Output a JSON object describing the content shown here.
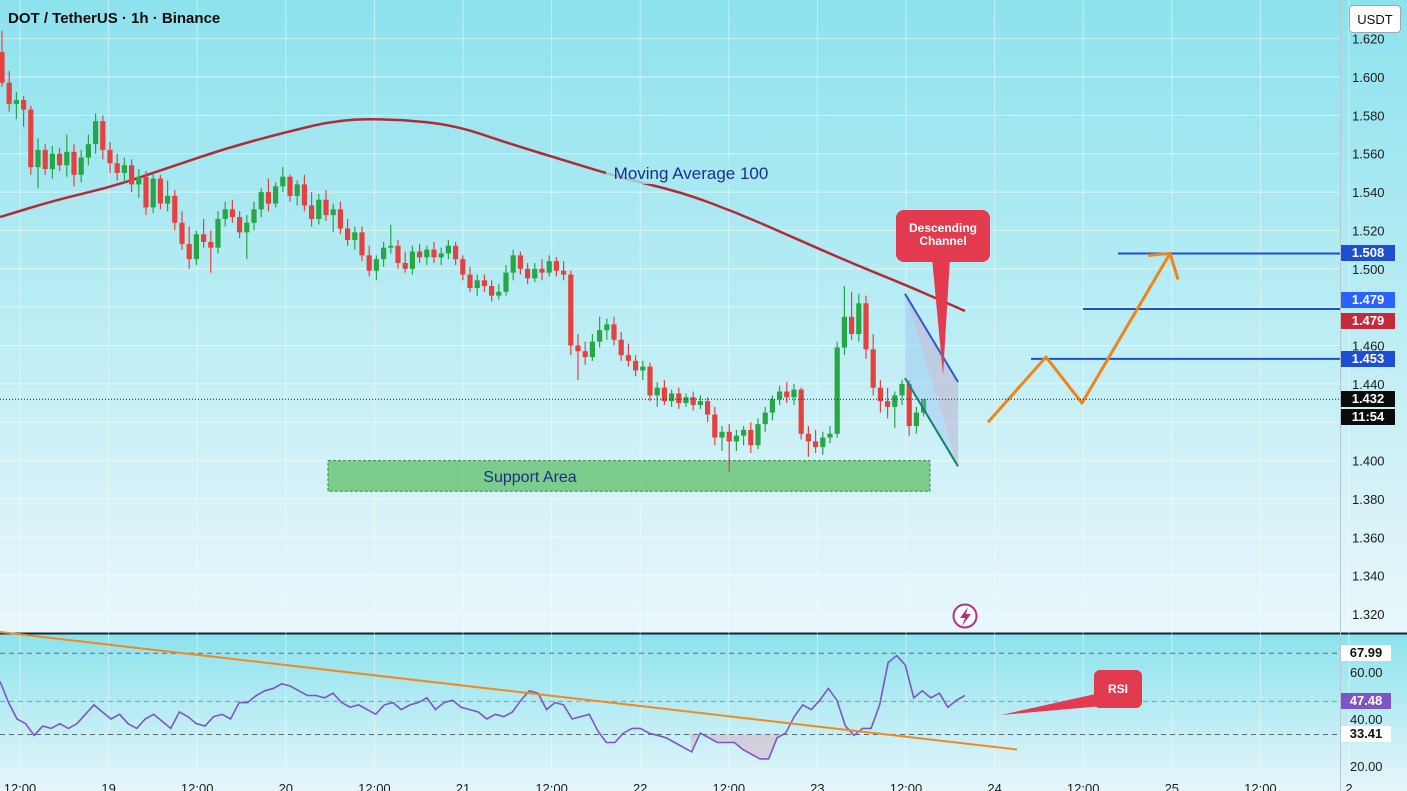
{
  "header": {
    "title": "DOT / TetherUS · 1h · Binance",
    "currency": "USDT"
  },
  "colors": {
    "background_top": "#8fe3ee",
    "background_bottom": "#e8f7fb",
    "candle_up": "#26a645",
    "candle_down": "#e4413f",
    "moving_average": "#b12a37",
    "forecast_arrow": "#ef8418",
    "support_area": "#5fbf6a",
    "channel_fill": "#8bb8f2",
    "rsi_line": "#7e55c6",
    "rsi_trend": "#ef8a1f",
    "level_line": "#1f4fd1",
    "callout_red": "#e23a4f"
  },
  "chart_data": [
    {
      "type": "line",
      "title": "DOT / TetherUS · 1h · Binance",
      "ylabel": "USDT",
      "ylim": [
        1.3,
        1.63
      ],
      "yticks": [
        1.32,
        1.34,
        1.36,
        1.38,
        1.4,
        1.42,
        1.44,
        1.46,
        1.48,
        1.5,
        1.52,
        1.54,
        1.56,
        1.58,
        1.6,
        1.62
      ],
      "ytick_labels": [
        "1.320",
        "1.340",
        "1.360",
        "1.380",
        "1.400",
        "",
        "1.440",
        "1.460",
        "",
        "1.500",
        "1.520",
        "1.540",
        "1.560",
        "1.580",
        "1.600",
        "1.620"
      ],
      "grid": true,
      "candles_ohlc": [
        [
          1.613,
          1.624,
          1.595,
          1.597
        ],
        [
          1.597,
          1.603,
          1.582,
          1.586
        ],
        [
          1.586,
          1.592,
          1.578,
          1.588
        ],
        [
          1.588,
          1.59,
          1.574,
          1.583
        ],
        [
          1.583,
          1.585,
          1.549,
          1.553
        ],
        [
          1.553,
          1.568,
          1.542,
          1.562
        ],
        [
          1.562,
          1.565,
          1.549,
          1.552
        ],
        [
          1.552,
          1.564,
          1.547,
          1.56
        ],
        [
          1.56,
          1.563,
          1.551,
          1.554
        ],
        [
          1.554,
          1.57,
          1.548,
          1.561
        ],
        [
          1.561,
          1.565,
          1.543,
          1.549
        ],
        [
          1.549,
          1.562,
          1.545,
          1.558
        ],
        [
          1.558,
          1.57,
          1.554,
          1.565
        ],
        [
          1.565,
          1.581,
          1.56,
          1.577
        ],
        [
          1.577,
          1.58,
          1.557,
          1.562
        ],
        [
          1.562,
          1.566,
          1.55,
          1.555
        ],
        [
          1.555,
          1.56,
          1.546,
          1.55
        ],
        [
          1.55,
          1.558,
          1.545,
          1.554
        ],
        [
          1.554,
          1.557,
          1.54,
          1.544
        ],
        [
          1.544,
          1.552,
          1.537,
          1.548
        ],
        [
          1.548,
          1.551,
          1.528,
          1.532
        ],
        [
          1.532,
          1.55,
          1.529,
          1.547
        ],
        [
          1.547,
          1.549,
          1.531,
          1.534
        ],
        [
          1.534,
          1.546,
          1.53,
          1.538
        ],
        [
          1.538,
          1.541,
          1.52,
          1.524
        ],
        [
          1.524,
          1.53,
          1.51,
          1.513
        ],
        [
          1.513,
          1.522,
          1.5,
          1.505
        ],
        [
          1.505,
          1.52,
          1.502,
          1.518
        ],
        [
          1.518,
          1.526,
          1.511,
          1.514
        ],
        [
          1.514,
          1.52,
          1.498,
          1.511
        ],
        [
          1.511,
          1.53,
          1.508,
          1.526
        ],
        [
          1.526,
          1.535,
          1.522,
          1.531
        ],
        [
          1.531,
          1.536,
          1.524,
          1.527
        ],
        [
          1.527,
          1.53,
          1.516,
          1.519
        ],
        [
          1.519,
          1.528,
          1.505,
          1.524
        ],
        [
          1.524,
          1.535,
          1.52,
          1.531
        ],
        [
          1.531,
          1.542,
          1.527,
          1.54
        ],
        [
          1.54,
          1.547,
          1.53,
          1.534
        ],
        [
          1.534,
          1.545,
          1.532,
          1.543
        ],
        [
          1.543,
          1.553,
          1.54,
          1.548
        ],
        [
          1.548,
          1.549,
          1.535,
          1.538
        ],
        [
          1.538,
          1.546,
          1.533,
          1.544
        ],
        [
          1.544,
          1.549,
          1.53,
          1.533
        ],
        [
          1.533,
          1.54,
          1.522,
          1.526
        ],
        [
          1.526,
          1.539,
          1.523,
          1.536
        ],
        [
          1.536,
          1.541,
          1.525,
          1.528
        ],
        [
          1.528,
          1.534,
          1.519,
          1.531
        ],
        [
          1.531,
          1.535,
          1.518,
          1.521
        ],
        [
          1.521,
          1.526,
          1.512,
          1.515
        ],
        [
          1.515,
          1.522,
          1.51,
          1.519
        ],
        [
          1.519,
          1.522,
          1.504,
          1.507
        ],
        [
          1.507,
          1.512,
          1.496,
          1.499
        ],
        [
          1.499,
          1.507,
          1.494,
          1.505
        ],
        [
          1.505,
          1.514,
          1.501,
          1.511
        ],
        [
          1.511,
          1.523,
          1.508,
          1.512
        ],
        [
          1.512,
          1.515,
          1.5,
          1.503
        ],
        [
          1.503,
          1.509,
          1.498,
          1.5
        ],
        [
          1.5,
          1.512,
          1.497,
          1.509
        ],
        [
          1.509,
          1.513,
          1.503,
          1.506
        ],
        [
          1.506,
          1.512,
          1.502,
          1.51
        ],
        [
          1.51,
          1.514,
          1.503,
          1.506
        ],
        [
          1.506,
          1.511,
          1.502,
          1.508
        ],
        [
          1.508,
          1.515,
          1.505,
          1.512
        ],
        [
          1.512,
          1.514,
          1.502,
          1.505
        ],
        [
          1.505,
          1.507,
          1.494,
          1.497
        ],
        [
          1.497,
          1.501,
          1.488,
          1.49
        ],
        [
          1.49,
          1.497,
          1.486,
          1.494
        ],
        [
          1.494,
          1.497,
          1.488,
          1.491
        ],
        [
          1.491,
          1.494,
          1.483,
          1.486
        ],
        [
          1.486,
          1.492,
          1.484,
          1.488
        ],
        [
          1.488,
          1.502,
          1.486,
          1.498
        ],
        [
          1.498,
          1.51,
          1.494,
          1.507
        ],
        [
          1.507,
          1.509,
          1.497,
          1.5
        ],
        [
          1.5,
          1.503,
          1.492,
          1.495
        ],
        [
          1.495,
          1.503,
          1.493,
          1.5
        ],
        [
          1.5,
          1.505,
          1.494,
          1.498
        ],
        [
          1.498,
          1.507,
          1.496,
          1.504
        ],
        [
          1.504,
          1.506,
          1.496,
          1.499
        ],
        [
          1.499,
          1.504,
          1.494,
          1.497
        ],
        [
          1.497,
          1.499,
          1.455,
          1.46
        ],
        [
          1.46,
          1.466,
          1.442,
          1.457
        ],
        [
          1.457,
          1.462,
          1.45,
          1.454
        ],
        [
          1.454,
          1.466,
          1.452,
          1.462
        ],
        [
          1.462,
          1.475,
          1.459,
          1.468
        ],
        [
          1.468,
          1.474,
          1.463,
          1.471
        ],
        [
          1.471,
          1.475,
          1.46,
          1.463
        ],
        [
          1.463,
          1.467,
          1.452,
          1.455
        ],
        [
          1.455,
          1.461,
          1.449,
          1.452
        ],
        [
          1.452,
          1.455,
          1.444,
          1.447
        ],
        [
          1.447,
          1.452,
          1.442,
          1.449
        ],
        [
          1.449,
          1.451,
          1.431,
          1.434
        ],
        [
          1.434,
          1.441,
          1.428,
          1.438
        ],
        [
          1.438,
          1.442,
          1.429,
          1.431
        ],
        [
          1.431,
          1.437,
          1.428,
          1.435
        ],
        [
          1.435,
          1.438,
          1.427,
          1.43
        ],
        [
          1.43,
          1.435,
          1.428,
          1.433
        ],
        [
          1.433,
          1.436,
          1.426,
          1.429
        ],
        [
          1.429,
          1.434,
          1.427,
          1.431
        ],
        [
          1.431,
          1.433,
          1.42,
          1.424
        ],
        [
          1.424,
          1.428,
          1.408,
          1.412
        ],
        [
          1.412,
          1.418,
          1.405,
          1.415
        ],
        [
          1.415,
          1.419,
          1.394,
          1.41
        ],
        [
          1.41,
          1.416,
          1.405,
          1.413
        ],
        [
          1.413,
          1.418,
          1.408,
          1.416
        ],
        [
          1.416,
          1.42,
          1.404,
          1.408
        ],
        [
          1.408,
          1.422,
          1.406,
          1.419
        ],
        [
          1.419,
          1.428,
          1.415,
          1.425
        ],
        [
          1.425,
          1.434,
          1.421,
          1.432
        ],
        [
          1.432,
          1.439,
          1.429,
          1.436
        ],
        [
          1.436,
          1.441,
          1.43,
          1.433
        ],
        [
          1.433,
          1.44,
          1.429,
          1.437
        ],
        [
          1.437,
          1.438,
          1.411,
          1.414
        ],
        [
          1.414,
          1.418,
          1.402,
          1.41
        ],
        [
          1.41,
          1.416,
          1.404,
          1.407
        ],
        [
          1.407,
          1.415,
          1.403,
          1.412
        ],
        [
          1.412,
          1.418,
          1.409,
          1.414
        ],
        [
          1.414,
          1.462,
          1.412,
          1.459
        ],
        [
          1.459,
          1.491,
          1.455,
          1.475
        ],
        [
          1.475,
          1.488,
          1.463,
          1.466
        ],
        [
          1.466,
          1.487,
          1.462,
          1.482
        ],
        [
          1.482,
          1.486,
          1.453,
          1.458
        ],
        [
          1.458,
          1.466,
          1.434,
          1.438
        ],
        [
          1.438,
          1.442,
          1.425,
          1.431
        ],
        [
          1.431,
          1.438,
          1.422,
          1.428
        ],
        [
          1.428,
          1.436,
          1.417,
          1.434
        ],
        [
          1.434,
          1.442,
          1.429,
          1.44
        ],
        [
          1.44,
          1.442,
          1.413,
          1.418
        ],
        [
          1.418,
          1.428,
          1.414,
          1.425
        ],
        [
          1.425,
          1.432,
          1.423,
          1.432
        ]
      ],
      "moving_average_100": {
        "name": "Moving Average 100",
        "values": [
          1.527,
          1.536,
          1.543,
          1.553,
          1.563,
          1.571,
          1.578,
          1.578,
          1.575,
          1.565,
          1.556,
          1.547,
          1.54,
          1.529,
          1.516,
          1.503,
          1.491,
          1.478
        ]
      },
      "last_price": 1.432,
      "countdown": "11:54",
      "support_area": {
        "label": "Support Area",
        "range": [
          1.384,
          1.4
        ]
      },
      "annotations": {
        "moving_average_label": "Moving Average 100",
        "channel_callout": "Descending Channel"
      },
      "descending_channel": {
        "upper": [
          1.487,
          1.441
        ],
        "lower": [
          1.443,
          1.397
        ]
      },
      "forecast_path": [
        1.42,
        1.454,
        1.43,
        1.508
      ],
      "horizontal_levels": [
        {
          "value": 1.508,
          "label": "1.508"
        },
        {
          "value": 1.479,
          "label": "1.479"
        },
        {
          "value": 1.453,
          "label": "1.453"
        }
      ],
      "price_scale_labels": [
        {
          "label": "1.508",
          "color": "#1f4fd1"
        },
        {
          "label": "1.479",
          "color": "#2962ff"
        },
        {
          "label": "1.479",
          "color": "#c62a3a"
        },
        {
          "label": "1.453",
          "color": "#1f4fd1"
        },
        {
          "label": "1.432",
          "color": "#0b0b0b"
        },
        {
          "label": "11:54",
          "color": "#0b0b0b"
        }
      ]
    },
    {
      "type": "line",
      "title": "",
      "ylim": [
        15,
        75
      ],
      "yticks": [
        20,
        40,
        60
      ],
      "ytick_labels": [
        "20.00",
        "40.00",
        "60.00"
      ],
      "bands": [
        67.99,
        33.41
      ],
      "band_labels": [
        "67.99",
        "33.41"
      ],
      "last_value": 47.48,
      "last_label": "47.48",
      "callout": "RSI",
      "trend_line": [
        77.0,
        27.0
      ],
      "series": [
        {
          "values": [
            56,
            47,
            40,
            38,
            33,
            37,
            36,
            38,
            36,
            38,
            42,
            46,
            43,
            40,
            42,
            38,
            36,
            40,
            42,
            39,
            36,
            43,
            41,
            38,
            37,
            41,
            42,
            40,
            47,
            47,
            50,
            52,
            53,
            55,
            54,
            52,
            50,
            50,
            49,
            51,
            47,
            45,
            46,
            44,
            42,
            46,
            47,
            44,
            46,
            47,
            49,
            44,
            47,
            48,
            45,
            44,
            43,
            40,
            42,
            41,
            43,
            48,
            52,
            51,
            44,
            47,
            46,
            40,
            41,
            42,
            35,
            30,
            30,
            34,
            36,
            36,
            34,
            33,
            32,
            30,
            28,
            26,
            34,
            32,
            30,
            30,
            30,
            27,
            25,
            23,
            23,
            32,
            34,
            41,
            46,
            44,
            48,
            53,
            48,
            37,
            33,
            36,
            36,
            46,
            64,
            67,
            63,
            49,
            52,
            49,
            51,
            45,
            48,
            50
          ]
        }
      ]
    }
  ],
  "x_axis": {
    "tick_labels": [
      "12:00",
      "19",
      "12:00",
      "20",
      "12:00",
      "21",
      "12:00",
      "22",
      "12:00",
      "23",
      "12:00",
      "24",
      "12:00",
      "25",
      "12:00",
      "2"
    ]
  }
}
